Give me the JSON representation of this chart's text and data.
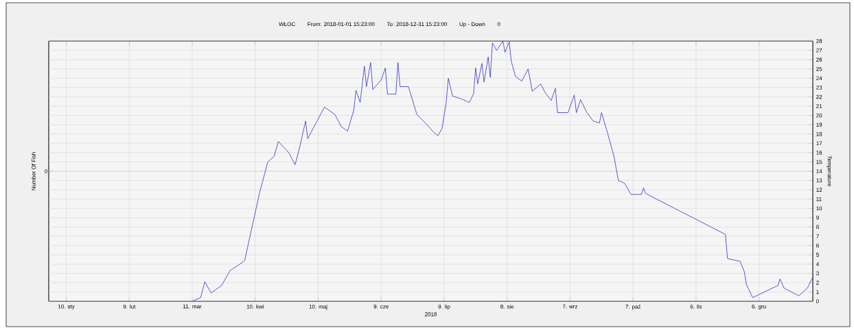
{
  "chart_data": {
    "type": "line",
    "title": "WŁOC",
    "annotations": [
      "From: 2018-01-01 15:23:00",
      "To: 2018-12-31 15:23:00",
      "Up - Down",
      "0",
      "0"
    ],
    "xlabel": "2018",
    "ylabel": "Number Of Fish",
    "y2label": "Temperature",
    "xlim": [
      "2018-01-01T15:23",
      "2018-12-31T15:23"
    ],
    "xticks": [
      {
        "value": "2018-01-10",
        "label": "10. sty"
      },
      {
        "value": "2018-02-09",
        "label": "9. lut"
      },
      {
        "value": "2018-03-11",
        "label": "11. mar"
      },
      {
        "value": "2018-04-10",
        "label": "10. kwi"
      },
      {
        "value": "2018-05-10",
        "label": "10. maj"
      },
      {
        "value": "2018-06-09",
        "label": "9. cze"
      },
      {
        "value": "2018-07-09",
        "label": "9. lip"
      },
      {
        "value": "2018-08-08",
        "label": "8. sie"
      },
      {
        "value": "2018-09-07",
        "label": "7. wrz"
      },
      {
        "value": "2018-10-07",
        "label": "7. paź"
      },
      {
        "value": "2018-11-06",
        "label": "6. lis"
      },
      {
        "value": "2018-12-06",
        "label": "6. gru"
      }
    ],
    "y2lim": [
      0,
      28
    ],
    "y2ticks": [
      0,
      1,
      2,
      3,
      4,
      5,
      6,
      7,
      8,
      9,
      10,
      11,
      12,
      13,
      14,
      15,
      16,
      17,
      18,
      19,
      20,
      21,
      22,
      23,
      24,
      25,
      26,
      27,
      28
    ],
    "grid": true,
    "marker": "none",
    "line_style": "solid",
    "series": [
      {
        "axis": "y2",
        "color": "#3030c8",
        "x": [
          "2018-03-11",
          "2018-03-15",
          "2018-03-17",
          "2018-03-20",
          "2018-03-25",
          "2018-03-29",
          "2018-04-04",
          "2018-04-05",
          "2018-04-12",
          "2018-04-16",
          "2018-04-19",
          "2018-04-21",
          "2018-04-26",
          "2018-04-29",
          "2018-05-01",
          "2018-05-04",
          "2018-05-05",
          "2018-05-09",
          "2018-05-13",
          "2018-05-18",
          "2018-05-21",
          "2018-05-24",
          "2018-05-27",
          "2018-05-28",
          "2018-05-30",
          "2018-06-01",
          "2018-06-02",
          "2018-06-04",
          "2018-06-05",
          "2018-06-09",
          "2018-06-11",
          "2018-06-12",
          "2018-06-16",
          "2018-06-17",
          "2018-06-18",
          "2018-06-22",
          "2018-06-26",
          "2018-06-30",
          "2018-07-04",
          "2018-07-06",
          "2018-07-08",
          "2018-07-10",
          "2018-07-11",
          "2018-07-13",
          "2018-07-18",
          "2018-07-21",
          "2018-07-23",
          "2018-07-24",
          "2018-07-25",
          "2018-07-27",
          "2018-07-28",
          "2018-07-30",
          "2018-07-31",
          "2018-08-01",
          "2018-08-03",
          "2018-08-06",
          "2018-08-07",
          "2018-08-09",
          "2018-08-10",
          "2018-08-12",
          "2018-08-15",
          "2018-08-18",
          "2018-08-20",
          "2018-08-24",
          "2018-08-26",
          "2018-08-29",
          "2018-08-31",
          "2018-09-01",
          "2018-09-06",
          "2018-09-09",
          "2018-09-10",
          "2018-09-12",
          "2018-09-15",
          "2018-09-18",
          "2018-09-21",
          "2018-09-22",
          "2018-09-25",
          "2018-09-28",
          "2018-09-30",
          "2018-10-03",
          "2018-10-06",
          "2018-10-11",
          "2018-10-12",
          "2018-10-13",
          "2018-11-20",
          "2018-11-21",
          "2018-11-27",
          "2018-11-29",
          "2018-11-30",
          "2018-12-03",
          "2018-12-15",
          "2018-12-16",
          "2018-12-18",
          "2018-12-25",
          "2018-12-29",
          "2018-12-31T15:23"
        ],
        "values": [
          0,
          0.4,
          2.1,
          0.9,
          1.7,
          3.3,
          4.2,
          4.4,
          11.6,
          15,
          15.6,
          17.2,
          16,
          14.7,
          16.4,
          19.4,
          17.5,
          19.2,
          20.9,
          20.1,
          18.8,
          18.3,
          20.6,
          22.7,
          21.4,
          25.3,
          23.1,
          25.7,
          22.8,
          23.8,
          25.1,
          22.3,
          22.3,
          25.7,
          23.1,
          23.1,
          20.1,
          19.2,
          18.2,
          17.8,
          18.6,
          21.4,
          24,
          22.1,
          21.7,
          21.4,
          22.3,
          25.1,
          23.4,
          25.6,
          23.6,
          26.3,
          24.1,
          27.8,
          27,
          28,
          26.8,
          27.9,
          25.8,
          24.2,
          23.7,
          25,
          22.6,
          23.4,
          22.5,
          21.6,
          22.9,
          20.3,
          20.3,
          22.2,
          20.3,
          21.7,
          20.3,
          19.4,
          19.2,
          20.3,
          18,
          15.5,
          13,
          12.7,
          11.5,
          11.5,
          12.2,
          11.6,
          7.2,
          4.6,
          4.3,
          3.2,
          1.8,
          0.4,
          1.7,
          2.4,
          1.4,
          0.6,
          1.4,
          2.6
        ]
      }
    ]
  }
}
